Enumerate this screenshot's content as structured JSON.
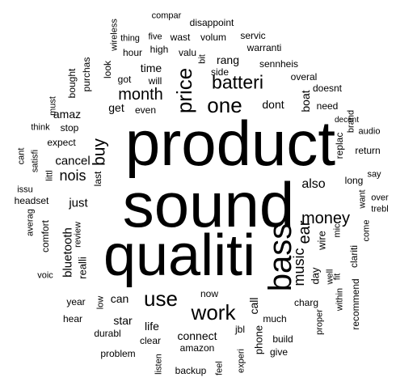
{
  "words": {
    "product": "product",
    "sound": "sound",
    "qualiti": "qualiti",
    "bass": "bass",
    "price": "price",
    "batteri": "batteri",
    "one": "one",
    "work": "work",
    "use": "use",
    "month": "month",
    "buy": "buy",
    "money": "money",
    "ear": "ear",
    "music": "music",
    "nois": "nois",
    "cancel": "cancel",
    "bluetooth": "bluetooth",
    "also": "also",
    "just": "just",
    "time": "time",
    "get": "get",
    "rang": "rang",
    "dont": "dont",
    "boat": "boat",
    "amaz": "amaz",
    "call": "call",
    "phone": "phone",
    "connect": "connect",
    "life": "life",
    "star": "star",
    "can": "can",
    "wire": "wire",
    "day": "day",
    "reall": "realli",
    "compar": "compar",
    "disappoint": "disappoint",
    "thing": "thing",
    "five": "five",
    "wast": "wast",
    "volum": "volum",
    "servic": "servic",
    "wireless": "wireless",
    "warranti": "warranti",
    "hour": "hour",
    "high": "high",
    "valu": "valu",
    "bit": "bit",
    "side": "side",
    "sennheis": "sennheis",
    "purchas": "purchas",
    "look": "look",
    "got": "got",
    "will": "will",
    "overal": "overal",
    "brand": "brand",
    "doesnt": "doesnt",
    "must": "must",
    "bought": "bought",
    "even": "even",
    "need": "need",
    "decent": "decent",
    "think": "think",
    "stop": "stop",
    "audio": "audio",
    "cant": "cant",
    "satisfi": "satisfi",
    "expect": "expect",
    "replac": "replac",
    "return": "return",
    "littl": "littl",
    "last": "last",
    "say": "say",
    "issu": "issu",
    "long": "long",
    "headset": "headset",
    "want": "want",
    "over": "over",
    "trebl": "trebl",
    "averag": "averag",
    "comfort": "comfort",
    "review": "review",
    "fit": "fit",
    "mic": "mic",
    "come": "come",
    "voic": "voic",
    "well": "well",
    "clariti": "clariti",
    "now": "now",
    "year": "year",
    "low": "low",
    "charg": "charg",
    "within": "within",
    "recommend": "recommend",
    "hear": "hear",
    "much": "much",
    "proper": "proper",
    "durabl": "durabl",
    "clear": "clear",
    "jbl": "jbl",
    "build": "build",
    "amazon": "amazon",
    "give": "give",
    "problem": "problem",
    "listen": "listen",
    "experi": "experi",
    "backup": "backup",
    "feel": "feel"
  }
}
